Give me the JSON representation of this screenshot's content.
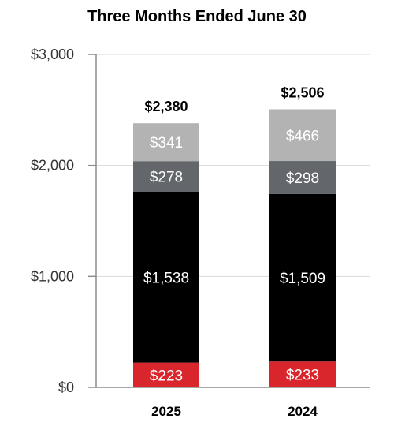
{
  "chart_data": {
    "type": "bar",
    "stacked": true,
    "title": "Three Months Ended June 30",
    "xlabel": "",
    "ylabel": "",
    "ylim": [
      0,
      3000
    ],
    "yticks": [
      0,
      1000,
      2000,
      3000
    ],
    "ytick_labels": [
      "$0",
      "$1,000",
      "$2,000",
      "$3,000"
    ],
    "grid": true,
    "legend": "none",
    "categories": [
      "2025",
      "2024"
    ],
    "series": [
      {
        "color": "#d9262c",
        "values": [
          223,
          233
        ],
        "labels": [
          "$223",
          "$233"
        ]
      },
      {
        "color": "#000000",
        "values": [
          1538,
          1509
        ],
        "labels": [
          "$1,538",
          "$1,509"
        ]
      },
      {
        "color": "#63666a",
        "values": [
          278,
          298
        ],
        "labels": [
          "$278",
          "$298"
        ]
      },
      {
        "color": "#b3b3b3",
        "values": [
          341,
          466
        ],
        "labels": [
          "$341",
          "$466"
        ]
      }
    ],
    "totals": [
      2380,
      2506
    ],
    "total_labels": [
      "$2,380",
      "$2,506"
    ]
  }
}
